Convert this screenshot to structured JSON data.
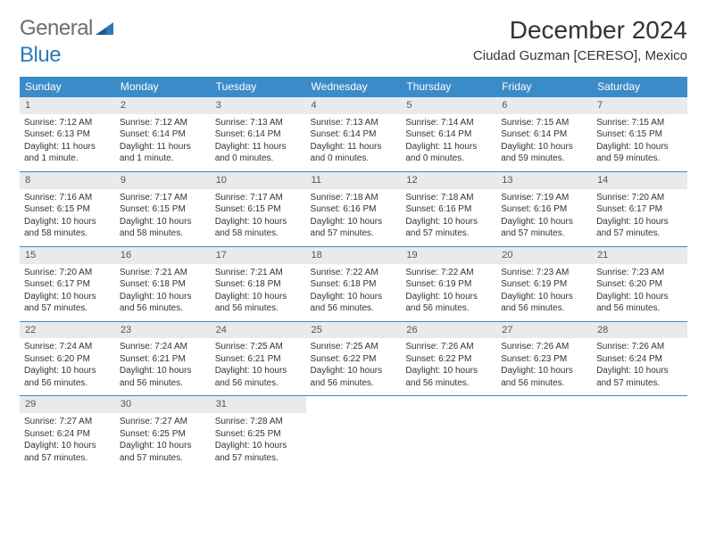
{
  "logo": {
    "text1": "General",
    "text2": "Blue",
    "color1": "#6d6e71",
    "color2": "#2f79bb"
  },
  "title": "December 2024",
  "location": "Ciudad Guzman [CERESO], Mexico",
  "weekday_header_bg": "#3b8bc9",
  "weekday_header_fg": "#ffffff",
  "daynum_bg": "#e9eaeb",
  "divider_color": "#3b8bc9",
  "weekdays": [
    "Sunday",
    "Monday",
    "Tuesday",
    "Wednesday",
    "Thursday",
    "Friday",
    "Saturday"
  ],
  "weeks": [
    [
      {
        "n": "1",
        "sr": "7:12 AM",
        "ss": "6:13 PM",
        "dl": "11 hours and 1 minute."
      },
      {
        "n": "2",
        "sr": "7:12 AM",
        "ss": "6:14 PM",
        "dl": "11 hours and 1 minute."
      },
      {
        "n": "3",
        "sr": "7:13 AM",
        "ss": "6:14 PM",
        "dl": "11 hours and 0 minutes."
      },
      {
        "n": "4",
        "sr": "7:13 AM",
        "ss": "6:14 PM",
        "dl": "11 hours and 0 minutes."
      },
      {
        "n": "5",
        "sr": "7:14 AM",
        "ss": "6:14 PM",
        "dl": "11 hours and 0 minutes."
      },
      {
        "n": "6",
        "sr": "7:15 AM",
        "ss": "6:14 PM",
        "dl": "10 hours and 59 minutes."
      },
      {
        "n": "7",
        "sr": "7:15 AM",
        "ss": "6:15 PM",
        "dl": "10 hours and 59 minutes."
      }
    ],
    [
      {
        "n": "8",
        "sr": "7:16 AM",
        "ss": "6:15 PM",
        "dl": "10 hours and 58 minutes."
      },
      {
        "n": "9",
        "sr": "7:17 AM",
        "ss": "6:15 PM",
        "dl": "10 hours and 58 minutes."
      },
      {
        "n": "10",
        "sr": "7:17 AM",
        "ss": "6:15 PM",
        "dl": "10 hours and 58 minutes."
      },
      {
        "n": "11",
        "sr": "7:18 AM",
        "ss": "6:16 PM",
        "dl": "10 hours and 57 minutes."
      },
      {
        "n": "12",
        "sr": "7:18 AM",
        "ss": "6:16 PM",
        "dl": "10 hours and 57 minutes."
      },
      {
        "n": "13",
        "sr": "7:19 AM",
        "ss": "6:16 PM",
        "dl": "10 hours and 57 minutes."
      },
      {
        "n": "14",
        "sr": "7:20 AM",
        "ss": "6:17 PM",
        "dl": "10 hours and 57 minutes."
      }
    ],
    [
      {
        "n": "15",
        "sr": "7:20 AM",
        "ss": "6:17 PM",
        "dl": "10 hours and 57 minutes."
      },
      {
        "n": "16",
        "sr": "7:21 AM",
        "ss": "6:18 PM",
        "dl": "10 hours and 56 minutes."
      },
      {
        "n": "17",
        "sr": "7:21 AM",
        "ss": "6:18 PM",
        "dl": "10 hours and 56 minutes."
      },
      {
        "n": "18",
        "sr": "7:22 AM",
        "ss": "6:18 PM",
        "dl": "10 hours and 56 minutes."
      },
      {
        "n": "19",
        "sr": "7:22 AM",
        "ss": "6:19 PM",
        "dl": "10 hours and 56 minutes."
      },
      {
        "n": "20",
        "sr": "7:23 AM",
        "ss": "6:19 PM",
        "dl": "10 hours and 56 minutes."
      },
      {
        "n": "21",
        "sr": "7:23 AM",
        "ss": "6:20 PM",
        "dl": "10 hours and 56 minutes."
      }
    ],
    [
      {
        "n": "22",
        "sr": "7:24 AM",
        "ss": "6:20 PM",
        "dl": "10 hours and 56 minutes."
      },
      {
        "n": "23",
        "sr": "7:24 AM",
        "ss": "6:21 PM",
        "dl": "10 hours and 56 minutes."
      },
      {
        "n": "24",
        "sr": "7:25 AM",
        "ss": "6:21 PM",
        "dl": "10 hours and 56 minutes."
      },
      {
        "n": "25",
        "sr": "7:25 AM",
        "ss": "6:22 PM",
        "dl": "10 hours and 56 minutes."
      },
      {
        "n": "26",
        "sr": "7:26 AM",
        "ss": "6:22 PM",
        "dl": "10 hours and 56 minutes."
      },
      {
        "n": "27",
        "sr": "7:26 AM",
        "ss": "6:23 PM",
        "dl": "10 hours and 56 minutes."
      },
      {
        "n": "28",
        "sr": "7:26 AM",
        "ss": "6:24 PM",
        "dl": "10 hours and 57 minutes."
      }
    ],
    [
      {
        "n": "29",
        "sr": "7:27 AM",
        "ss": "6:24 PM",
        "dl": "10 hours and 57 minutes."
      },
      {
        "n": "30",
        "sr": "7:27 AM",
        "ss": "6:25 PM",
        "dl": "10 hours and 57 minutes."
      },
      {
        "n": "31",
        "sr": "7:28 AM",
        "ss": "6:25 PM",
        "dl": "10 hours and 57 minutes."
      },
      null,
      null,
      null,
      null
    ]
  ],
  "labels": {
    "sunrise": "Sunrise:",
    "sunset": "Sunset:",
    "daylight": "Daylight:"
  }
}
